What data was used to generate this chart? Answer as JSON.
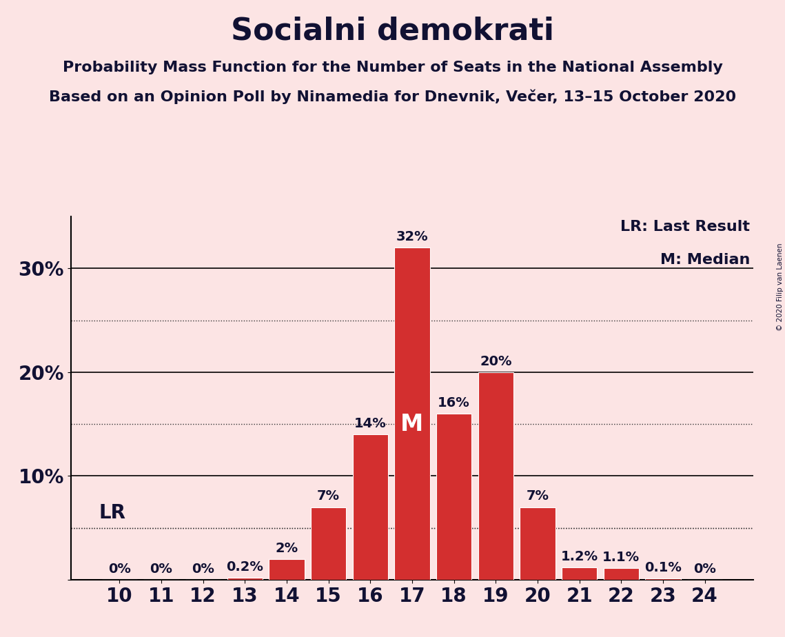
{
  "title": "Socialni demokrati",
  "subtitle1": "Probability Mass Function for the Number of Seats in the National Assembly",
  "subtitle2": "Based on an Opinion Poll by Ninamedia for Dnevnik, Večer, 13–15 October 2020",
  "copyright": "© 2020 Filip van Laenen",
  "background_color": "#fce4e4",
  "bar_color": "#d32f2f",
  "categories": [
    10,
    11,
    12,
    13,
    14,
    15,
    16,
    17,
    18,
    19,
    20,
    21,
    22,
    23,
    24
  ],
  "values": [
    0.0,
    0.0,
    0.0,
    0.2,
    2.0,
    7.0,
    14.0,
    32.0,
    16.0,
    20.0,
    7.0,
    1.2,
    1.1,
    0.1,
    0.0
  ],
  "labels": [
    "0%",
    "0%",
    "0%",
    "0.2%",
    "2%",
    "7%",
    "14%",
    "32%",
    "16%",
    "20%",
    "7%",
    "1.2%",
    "1.1%",
    "0.1%",
    "0%"
  ],
  "median_bar_index": 7,
  "lr_value": 5.0,
  "lr_label": "LR",
  "median_label": "M",
  "legend_lr": "LR: Last Result",
  "legend_m": "M: Median",
  "yticks": [
    0,
    10,
    20,
    30
  ],
  "ytick_labels": [
    "",
    "10%",
    "20%",
    "30%"
  ],
  "ymax": 35,
  "solid_lines": [
    0,
    10,
    20,
    30
  ],
  "dotted_lines": [
    5,
    15,
    25
  ],
  "title_fontsize": 32,
  "subtitle_fontsize": 16,
  "axis_fontsize": 20,
  "bar_label_fontsize": 14,
  "legend_fontsize": 16,
  "text_color": "#111133"
}
